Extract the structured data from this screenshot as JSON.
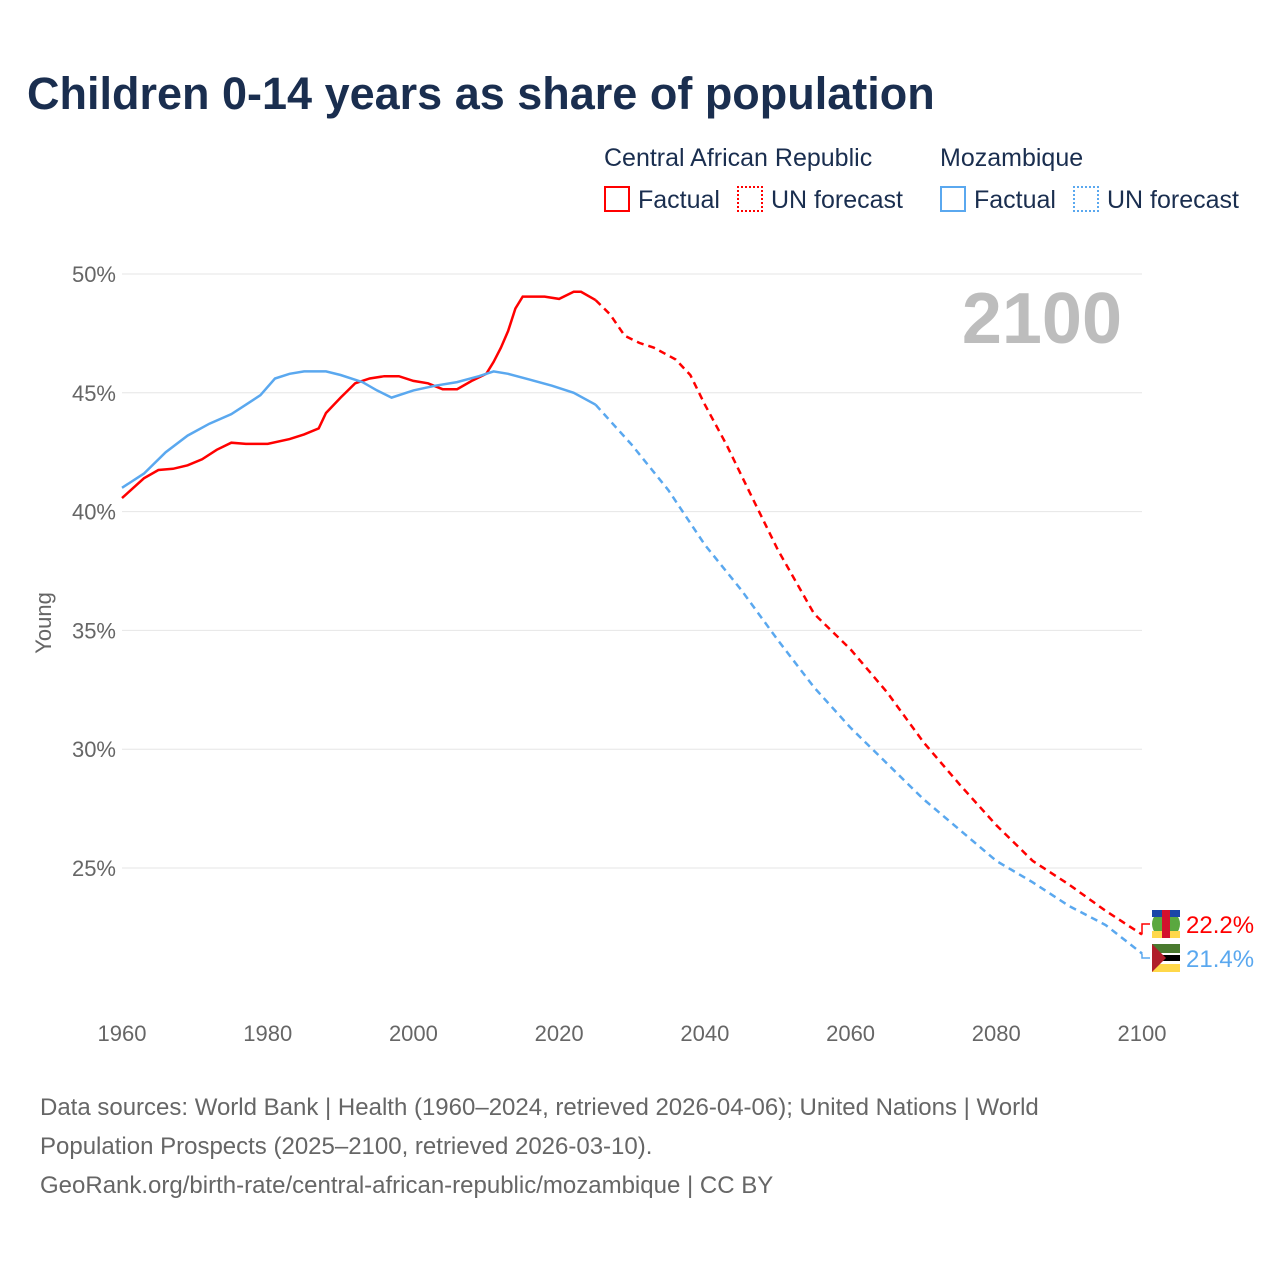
{
  "title": "Children 0-14 years as share of population",
  "legend": {
    "groups": [
      {
        "name": "Central African Republic",
        "factual": "Factual",
        "forecast": "UN forecast",
        "color": "#ff0000"
      },
      {
        "name": "Mozambique",
        "factual": "Factual",
        "forecast": "UN forecast",
        "color": "#5aa8ef"
      }
    ]
  },
  "year_label": "2100",
  "footer": {
    "line1": "Data sources: World Bank | Health (1960–2024, retrieved 2026-04-06); United Nations | World",
    "line2": "Population Prospects (2025–2100, retrieved 2026-03-10).",
    "line3": "GeoRank.org/birth-rate/central-african-republic/mozambique | CC BY"
  },
  "chart_data": {
    "type": "line",
    "title": "Children 0-14 years as share of population",
    "xlabel": "",
    "ylabel": "Young",
    "xlim": [
      1960,
      2100
    ],
    "ylim": [
      20,
      50
    ],
    "xticks": [
      "1960",
      "1980",
      "2000",
      "2020",
      "2040",
      "2060",
      "2080",
      "2100"
    ],
    "yticks": [
      "25%",
      "30%",
      "35%",
      "40%",
      "45%",
      "50%"
    ],
    "grid": true,
    "series": [
      {
        "name": "Central African Republic",
        "color": "#ff0000",
        "end_label": "22.2%",
        "factual": [
          [
            1960,
            40.57
          ],
          [
            1963,
            41.4
          ],
          [
            1965,
            41.75
          ],
          [
            1967,
            41.8
          ],
          [
            1969,
            41.95
          ],
          [
            1971,
            42.2
          ],
          [
            1973,
            42.6
          ],
          [
            1975,
            42.9
          ],
          [
            1977,
            42.85
          ],
          [
            1980,
            42.85
          ],
          [
            1983,
            43.05
          ],
          [
            1985,
            43.25
          ],
          [
            1987,
            43.5
          ],
          [
            1988,
            44.15
          ],
          [
            1990,
            44.8
          ],
          [
            1992,
            45.4
          ],
          [
            1994,
            45.6
          ],
          [
            1996,
            45.7
          ],
          [
            1998,
            45.7
          ],
          [
            2000,
            45.5
          ],
          [
            2002,
            45.4
          ],
          [
            2004,
            45.15
          ],
          [
            2006,
            45.15
          ],
          [
            2008,
            45.5
          ],
          [
            2010,
            45.8
          ],
          [
            2011,
            46.3
          ],
          [
            2012,
            46.9
          ],
          [
            2013,
            47.6
          ],
          [
            2014,
            48.55
          ],
          [
            2015,
            49.05
          ],
          [
            2018,
            49.05
          ],
          [
            2020,
            48.95
          ],
          [
            2022,
            49.25
          ],
          [
            2023,
            49.25
          ],
          [
            2025,
            48.9
          ]
        ],
        "forecast": [
          [
            2025,
            48.9
          ],
          [
            2027,
            48.3
          ],
          [
            2029,
            47.4
          ],
          [
            2031,
            47.1
          ],
          [
            2033,
            46.9
          ],
          [
            2036,
            46.4
          ],
          [
            2038,
            45.75
          ],
          [
            2040,
            44.5
          ],
          [
            2043,
            42.8
          ],
          [
            2046,
            40.9
          ],
          [
            2050,
            38.4
          ],
          [
            2055,
            35.7
          ],
          [
            2060,
            34.2
          ],
          [
            2065,
            32.4
          ],
          [
            2070,
            30.3
          ],
          [
            2075,
            28.5
          ],
          [
            2080,
            26.8
          ],
          [
            2085,
            25.3
          ],
          [
            2090,
            24.3
          ],
          [
            2095,
            23.2
          ],
          [
            2100,
            22.2
          ]
        ]
      },
      {
        "name": "Mozambique",
        "color": "#5aa8ef",
        "end_label": "21.4%",
        "factual": [
          [
            1960,
            41.0
          ],
          [
            1963,
            41.6
          ],
          [
            1966,
            42.5
          ],
          [
            1969,
            43.2
          ],
          [
            1972,
            43.7
          ],
          [
            1975,
            44.1
          ],
          [
            1977,
            44.5
          ],
          [
            1979,
            44.9
          ],
          [
            1981,
            45.6
          ],
          [
            1983,
            45.8
          ],
          [
            1985,
            45.9
          ],
          [
            1988,
            45.9
          ],
          [
            1990,
            45.75
          ],
          [
            1993,
            45.45
          ],
          [
            1995,
            45.1
          ],
          [
            1997,
            44.8
          ],
          [
            2000,
            45.1
          ],
          [
            2003,
            45.3
          ],
          [
            2006,
            45.45
          ],
          [
            2009,
            45.7
          ],
          [
            2011,
            45.9
          ],
          [
            2013,
            45.8
          ],
          [
            2016,
            45.55
          ],
          [
            2019,
            45.3
          ],
          [
            2022,
            45.0
          ],
          [
            2025,
            44.5
          ]
        ],
        "forecast": [
          [
            2025,
            44.5
          ],
          [
            2030,
            42.8
          ],
          [
            2035,
            40.9
          ],
          [
            2040,
            38.6
          ],
          [
            2045,
            36.7
          ],
          [
            2050,
            34.6
          ],
          [
            2055,
            32.6
          ],
          [
            2060,
            30.9
          ],
          [
            2065,
            29.4
          ],
          [
            2070,
            27.9
          ],
          [
            2075,
            26.6
          ],
          [
            2080,
            25.3
          ],
          [
            2085,
            24.4
          ],
          [
            2090,
            23.4
          ],
          [
            2095,
            22.6
          ],
          [
            2100,
            21.4
          ]
        ]
      }
    ]
  }
}
